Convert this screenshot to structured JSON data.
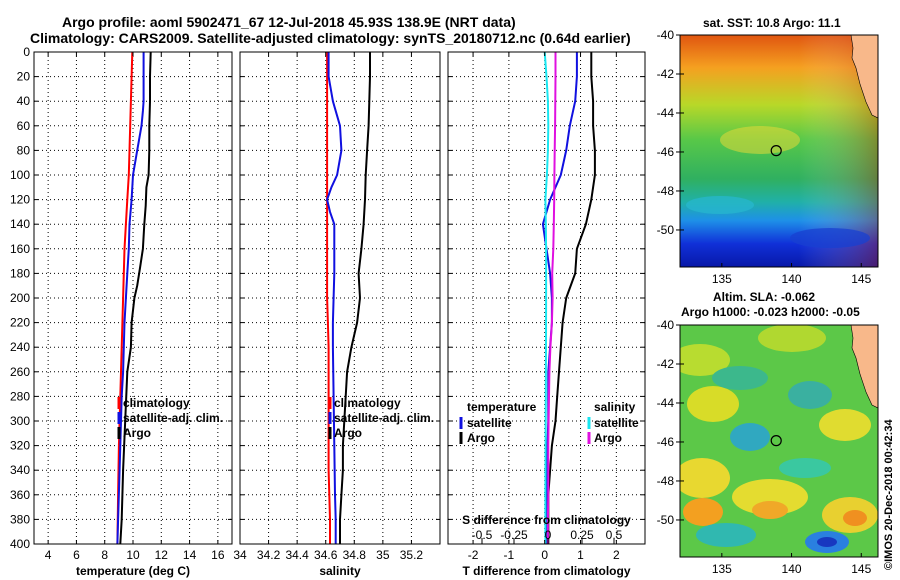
{
  "title": {
    "line1": "Argo profile: aoml 5902471_67 12-Jul-2018 45.93S 138.9E (NRT data)",
    "line2": "Climatology: CARS2009. Satellite-adjusted climatology: synTS_20180712.nc (0.64d earlier)"
  },
  "watermark": "©IMOS 20-Dec-2018 00:42:34",
  "colors": {
    "red": "#ff0000",
    "blue": "#1010e0",
    "black": "#000000",
    "cyan": "#18e6f0",
    "magenta": "#e010e0"
  },
  "chart_data": [
    {
      "type": "line",
      "name": "temperature profile",
      "xlabel": "temperature (deg C)",
      "ylabel": "depth (dbar)",
      "xlim": [
        3,
        17
      ],
      "ylim": [
        0,
        400
      ],
      "xticks": [
        4,
        6,
        8,
        10,
        12,
        14,
        16
      ],
      "yticks": [
        0,
        20,
        40,
        60,
        80,
        100,
        120,
        140,
        160,
        180,
        200,
        220,
        240,
        260,
        280,
        300,
        320,
        340,
        360,
        380,
        400
      ],
      "legend": [
        "climatology",
        "satellite-adj. clim.",
        "Argo"
      ],
      "series": [
        {
          "name": "climatology",
          "color": "red",
          "x": [
            9.95,
            9.9,
            9.85,
            9.8,
            9.75,
            9.7,
            9.6,
            9.5,
            9.4,
            9.35,
            9.3,
            9.25,
            9.2,
            9.15,
            9.1,
            9.05,
            9.0,
            8.95,
            8.9
          ],
          "y": [
            0,
            20,
            40,
            60,
            80,
            100,
            120,
            140,
            160,
            180,
            200,
            220,
            240,
            260,
            280,
            300,
            320,
            360,
            400
          ]
        },
        {
          "name": "satellite-adj. clim.",
          "color": "blue",
          "x": [
            10.75,
            10.75,
            10.75,
            10.7,
            10.6,
            10.3,
            10.0,
            9.9,
            9.75,
            9.7,
            9.6,
            9.5,
            9.4,
            9.35,
            9.3,
            9.2,
            9.15,
            9.05,
            8.95,
            8.9
          ],
          "y": [
            0,
            20,
            40,
            48,
            60,
            80,
            100,
            120,
            140,
            160,
            180,
            200,
            220,
            240,
            260,
            280,
            300,
            340,
            380,
            400
          ]
        },
        {
          "name": "Argo",
          "color": "black",
          "x": [
            11.25,
            11.2,
            11.2,
            11.15,
            11.15,
            11.1,
            10.95,
            10.9,
            10.8,
            10.7,
            10.5,
            10.3,
            10.1,
            9.9,
            9.85,
            9.6,
            9.45,
            9.3,
            9.2,
            9.1
          ],
          "y": [
            0,
            20,
            40,
            60,
            80,
            100,
            110,
            125,
            140,
            160,
            175,
            190,
            200,
            220,
            240,
            260,
            300,
            340,
            380,
            400
          ]
        }
      ]
    },
    {
      "type": "line",
      "name": "salinity profile",
      "xlabel": "salinity",
      "xlim": [
        34,
        35.4
      ],
      "ylim": [
        0,
        400
      ],
      "xticks": [
        34,
        34.2,
        34.4,
        34.6,
        34.8,
        35,
        35.2
      ],
      "xtick_labels": [
        "34",
        "34.2",
        "34.4",
        "34.6",
        "34.8",
        "35",
        "35.2"
      ],
      "legend": [
        "climatology",
        "satellite-adj. clim.",
        "Argo"
      ],
      "series": [
        {
          "name": "climatology",
          "color": "red",
          "x": [
            34.61,
            34.61,
            34.61,
            34.61,
            34.61,
            34.61,
            34.61,
            34.61,
            34.615,
            34.62,
            34.62,
            34.62,
            34.62,
            34.62,
            34.63,
            34.63
          ],
          "y": [
            0,
            40,
            80,
            120,
            140,
            160,
            180,
            200,
            220,
            240,
            260,
            280,
            300,
            340,
            380,
            400
          ]
        },
        {
          "name": "satellite-adj. clim.",
          "color": "blue",
          "x": [
            34.62,
            34.62,
            34.65,
            34.7,
            34.71,
            34.68,
            34.64,
            34.61,
            34.63,
            34.66,
            34.66,
            34.66,
            34.655,
            34.65,
            34.65,
            34.655,
            34.66,
            34.665,
            34.67,
            34.67
          ],
          "y": [
            0,
            20,
            40,
            60,
            80,
            100,
            110,
            120,
            130,
            140,
            160,
            180,
            200,
            220,
            240,
            280,
            320,
            360,
            380,
            400
          ]
        },
        {
          "name": "Argo",
          "color": "black",
          "x": [
            34.91,
            34.91,
            34.905,
            34.9,
            34.89,
            34.88,
            34.875,
            34.865,
            34.85,
            34.83,
            34.84,
            34.82,
            34.78,
            34.75,
            34.74,
            34.73,
            34.72,
            34.72,
            34.71,
            34.7,
            34.7
          ],
          "y": [
            0,
            20,
            40,
            60,
            80,
            100,
            120,
            140,
            160,
            180,
            200,
            220,
            240,
            260,
            280,
            300,
            320,
            340,
            360,
            380,
            400
          ]
        }
      ]
    },
    {
      "type": "line",
      "name": "difference from climatology",
      "xlabel": "T difference from climatology",
      "x2label": "S difference from climatology",
      "xlim": [
        -2.7,
        2.8
      ],
      "ylim": [
        0,
        400
      ],
      "xticks": [
        -2,
        -1,
        0,
        1,
        2
      ],
      "x2ticks": [
        -0.5,
        -0.25,
        0,
        0.25,
        0.5
      ],
      "x2tick_labels": [
        "-0.5",
        "-0.25",
        "0",
        "0.25",
        "0.5"
      ],
      "legend_temperature": {
        "header": "temperature",
        "items": [
          "satellite",
          "Argo"
        ]
      },
      "legend_salinity": {
        "header": "salinity",
        "items": [
          "satellite",
          "Argo"
        ]
      },
      "series": [
        {
          "name": "T satellite",
          "color": "blue",
          "x": [
            0.9,
            0.9,
            0.85,
            0.7,
            0.6,
            0.45,
            0.15,
            -0.05,
            0.05,
            0.15,
            0.2,
            0.2,
            0.15,
            0.1,
            0.1,
            0.05,
            0.05,
            0.05,
            0.05
          ],
          "y": [
            0,
            20,
            40,
            60,
            80,
            100,
            120,
            140,
            160,
            180,
            200,
            220,
            240,
            260,
            300,
            340,
            360,
            380,
            400
          ]
        },
        {
          "name": "T Argo",
          "color": "black",
          "x": [
            1.3,
            1.3,
            1.35,
            1.35,
            1.4,
            1.4,
            1.3,
            1.15,
            0.9,
            0.85,
            0.6,
            0.5,
            0.45,
            0.4,
            0.35,
            0.3,
            0.2,
            0.15,
            0.1,
            0.1
          ],
          "y": [
            0,
            20,
            40,
            60,
            80,
            100,
            120,
            140,
            160,
            180,
            200,
            220,
            240,
            260,
            280,
            300,
            320,
            340,
            360,
            400
          ]
        },
        {
          "name": "S satellite",
          "color": "cyan",
          "x": [
            0.0,
            0.05,
            0.09,
            0.1,
            0.09,
            0.06,
            0.02,
            0.03,
            0.04,
            0.04,
            0.04,
            0.035,
            0.03,
            0.025,
            0.02,
            0.02,
            0.02
          ],
          "y": [
            0,
            20,
            40,
            60,
            80,
            100,
            120,
            140,
            160,
            180,
            200,
            240,
            280,
            320,
            360,
            380,
            400
          ]
        },
        {
          "name": "S Argo",
          "color": "magenta",
          "x": [
            0.3,
            0.3,
            0.295,
            0.29,
            0.28,
            0.27,
            0.265,
            0.255,
            0.24,
            0.21,
            0.22,
            0.2,
            0.16,
            0.13,
            0.12,
            0.11,
            0.1,
            0.1,
            0.1,
            0.09,
            0.09
          ],
          "y": [
            0,
            20,
            40,
            60,
            80,
            100,
            120,
            140,
            160,
            180,
            200,
            220,
            240,
            260,
            280,
            300,
            320,
            340,
            360,
            380,
            400
          ]
        }
      ]
    },
    {
      "type": "heatmap",
      "name": "satellite SST map",
      "title": "sat. SST: 10.8 Argo: 11.1",
      "xlim": [
        132,
        146.2
      ],
      "ylim": [
        -51.9,
        -40
      ],
      "xticks": [
        135,
        140,
        145
      ],
      "yticks": [
        -40,
        -42,
        -44,
        -46,
        -48,
        -50
      ],
      "marker": {
        "lon": 138.9,
        "lat": -45.93
      }
    },
    {
      "type": "heatmap",
      "name": "sea level anomaly map",
      "title": "Altim. SLA: -0.062",
      "subtitle": "Argo h1000: -0.023 h2000: -0.05",
      "xlim": [
        132,
        146.2
      ],
      "ylim": [
        -51.9,
        -40
      ],
      "xticks": [
        135,
        140,
        145
      ],
      "yticks": [
        -40,
        -42,
        -44,
        -46,
        -48,
        -50
      ],
      "marker": {
        "lon": 138.9,
        "lat": -45.93
      }
    }
  ]
}
